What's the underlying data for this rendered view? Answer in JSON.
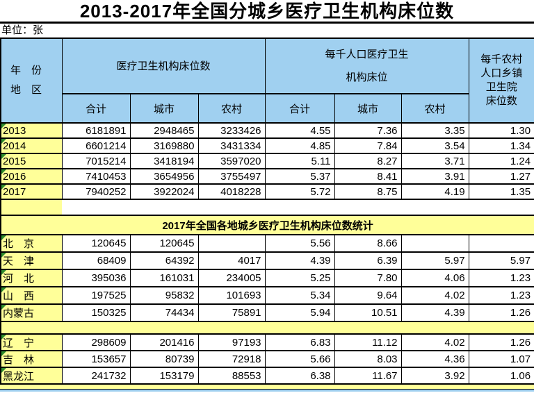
{
  "title": "2013-2017年全国分城乡医疗卫生机构床位数",
  "unit_label": "单位：张",
  "colors": {
    "header_blue": "#A0D0F0",
    "row_yellow": "#FFFF99",
    "triangle_green": "#2E8B2E",
    "border": "#000000"
  },
  "table": {
    "corner_header": "年　份\n地　区",
    "group_header_beds": "医疗卫生机构床位数",
    "group_header_per_thousand": "每千人口医疗卫生\n机构床位",
    "last_col_header": "每千农村\n人口乡镇\n卫生院\n床位数",
    "sub_headers": [
      "合计",
      "城市",
      "农村",
      "合计",
      "城市",
      "农村"
    ],
    "year_rows": [
      {
        "label": "2013",
        "values": [
          "6181891",
          "2948465",
          "3233426",
          "4.55",
          "7.36",
          "3.35",
          "1.30"
        ]
      },
      {
        "label": "2014",
        "values": [
          "6601214",
          "3169880",
          "3431334",
          "4.85",
          "7.84",
          "3.54",
          "1.34"
        ]
      },
      {
        "label": "2015",
        "values": [
          "7015214",
          "3418194",
          "3597020",
          "5.11",
          "8.27",
          "3.71",
          "1.24"
        ]
      },
      {
        "label": "2016",
        "values": [
          "7410453",
          "3654956",
          "3755497",
          "5.37",
          "8.41",
          "3.91",
          "1.27"
        ]
      },
      {
        "label": "2017",
        "values": [
          "7940252",
          "3922024",
          "4018228",
          "5.72",
          "8.75",
          "4.19",
          "1.35"
        ]
      }
    ],
    "section_title": "2017年全国各地城乡医疗卫生机构床位数统计",
    "region_rows_a": [
      {
        "label": "北　京",
        "values": [
          "120645",
          "120645",
          "",
          "5.56",
          "8.66",
          "",
          ""
        ]
      },
      {
        "label": "天　津",
        "values": [
          "68409",
          "64392",
          "4017",
          "4.39",
          "6.39",
          "5.97",
          "5.97"
        ]
      },
      {
        "label": "河　北",
        "values": [
          "395036",
          "161031",
          "234005",
          "5.25",
          "7.80",
          "4.06",
          "1.23"
        ]
      },
      {
        "label": "山　西",
        "values": [
          "197525",
          "95832",
          "101693",
          "5.34",
          "9.64",
          "4.02",
          "1.23"
        ]
      },
      {
        "label": "内蒙古",
        "values": [
          "150325",
          "74434",
          "75891",
          "5.94",
          "10.51",
          "4.39",
          "1.26"
        ]
      }
    ],
    "region_rows_b": [
      {
        "label": "辽　宁",
        "values": [
          "298609",
          "201416",
          "97193",
          "6.83",
          "11.12",
          "4.02",
          "1.26"
        ]
      },
      {
        "label": "吉　林",
        "values": [
          "153657",
          "80739",
          "72918",
          "5.66",
          "8.03",
          "4.36",
          "1.07"
        ]
      },
      {
        "label": "黑龙江",
        "values": [
          "241732",
          "153179",
          "88553",
          "6.38",
          "11.67",
          "3.92",
          "1.06"
        ]
      }
    ]
  }
}
